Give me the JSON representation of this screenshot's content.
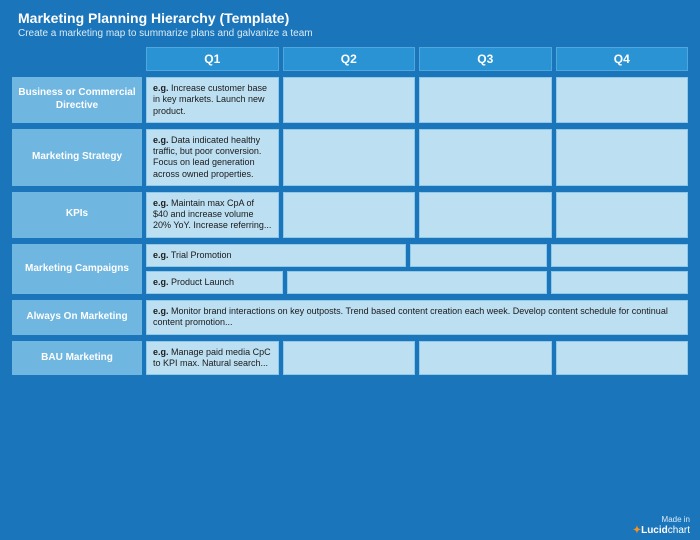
{
  "colors": {
    "page_bg": "#1b75bb",
    "col_header_bg": "#2a93d4",
    "row_label_bg": "#6fb6e0",
    "cell_bg": "#bcdff2",
    "text_light": "#ffffff",
    "text_dark": "#1a1a1a"
  },
  "header": {
    "title": "Marketing Planning Hierarchy (Template)",
    "subtitle": "Create a marketing map to summarize plans and galvanize a team"
  },
  "columns": {
    "q1": "Q1",
    "q2": "Q2",
    "q3": "Q3",
    "q4": "Q4"
  },
  "eg_label": "e.g.",
  "rows": {
    "directive": {
      "label": "Business or Commercial Directive",
      "q1": " Increase customer base in key markets. Launch new product."
    },
    "strategy": {
      "label": "Marketing Strategy",
      "q1": " Data indicated healthy traffic, but poor conversion. Focus on lead generation across owned properties."
    },
    "kpis": {
      "label": "KPIs",
      "q1": " Maintain max CpA of $40 and increase volume 20% YoY.\nIncrease referring..."
    },
    "campaigns": {
      "label": "Marketing Campaigns",
      "sub1": " Trial Promotion",
      "sub2": " Product Launch"
    },
    "always_on": {
      "label": "Always On Marketing",
      "full": " Monitor brand interactions on key outposts.\nTrend based content creation each week.\nDevelop content schedule for continual content promotion..."
    },
    "bau": {
      "label": "BAU Marketing",
      "q1": " Manage paid media CpC to KPI max.\nNatural search..."
    }
  },
  "footer": {
    "made_in": "Made in",
    "brand_prefix": "Lucid",
    "brand_suffix": "chart"
  }
}
